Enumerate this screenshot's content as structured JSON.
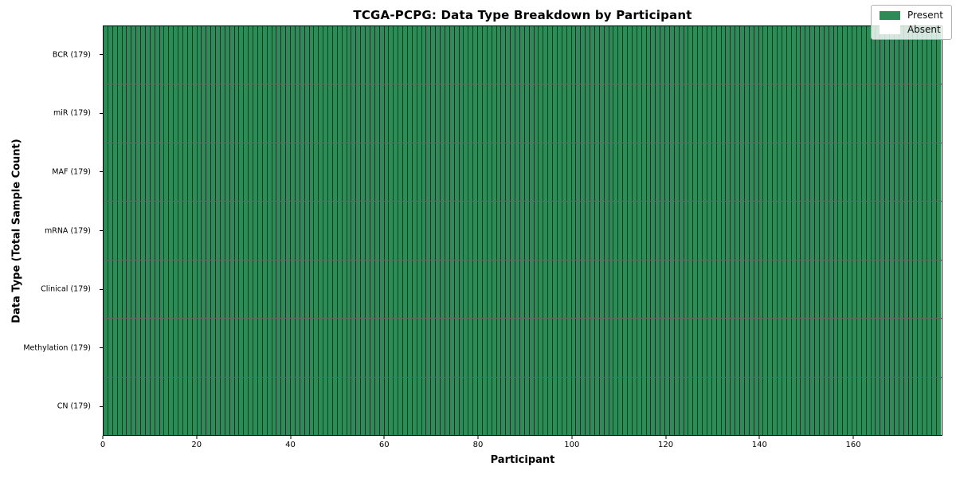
{
  "title": "TCGA-PCPG: Data Type Breakdown by Participant",
  "axes": {
    "x_label": "Participant",
    "y_label": "Data Type (Total Sample Count)",
    "x_ticks": [
      0,
      20,
      40,
      60,
      80,
      100,
      120,
      140,
      160
    ]
  },
  "legend": {
    "position": "upper right",
    "items": [
      {
        "label": "Present",
        "color": "#2e8b57"
      },
      {
        "label": "Absent",
        "color": "#ffffff"
      }
    ]
  },
  "chart_data": {
    "type": "heatmap",
    "title": "TCGA-PCPG: Data Type Breakdown by Participant",
    "xlabel": "Participant",
    "ylabel": "Data Type (Total Sample Count)",
    "xlim": [
      0,
      179
    ],
    "n_participants": 179,
    "grid": true,
    "legend_position": "upper right",
    "legend_entries": [
      "Present",
      "Absent"
    ],
    "colors": {
      "present": "#2e8b57",
      "absent": "#ffffff",
      "cell_edge": "rgba(0,0,0,0.60)"
    },
    "rows": [
      {
        "label": "BCR (179)",
        "data_type": "BCR",
        "total_samples": 179,
        "present_count": 179,
        "absent_count": 0
      },
      {
        "label": "miR (179)",
        "data_type": "miR",
        "total_samples": 179,
        "present_count": 179,
        "absent_count": 0
      },
      {
        "label": "MAF (179)",
        "data_type": "MAF",
        "total_samples": 179,
        "present_count": 179,
        "absent_count": 0
      },
      {
        "label": "mRNA (179)",
        "data_type": "mRNA",
        "total_samples": 179,
        "present_count": 179,
        "absent_count": 0
      },
      {
        "label": "Clinical (179)",
        "data_type": "Clinical",
        "total_samples": 179,
        "present_count": 179,
        "absent_count": 0
      },
      {
        "label": "Methylation (179)",
        "data_type": "Methylation",
        "total_samples": 179,
        "present_count": 179,
        "absent_count": 0
      },
      {
        "label": "CN (179)",
        "data_type": "CN",
        "total_samples": 179,
        "present_count": 179,
        "absent_count": 0
      }
    ]
  }
}
